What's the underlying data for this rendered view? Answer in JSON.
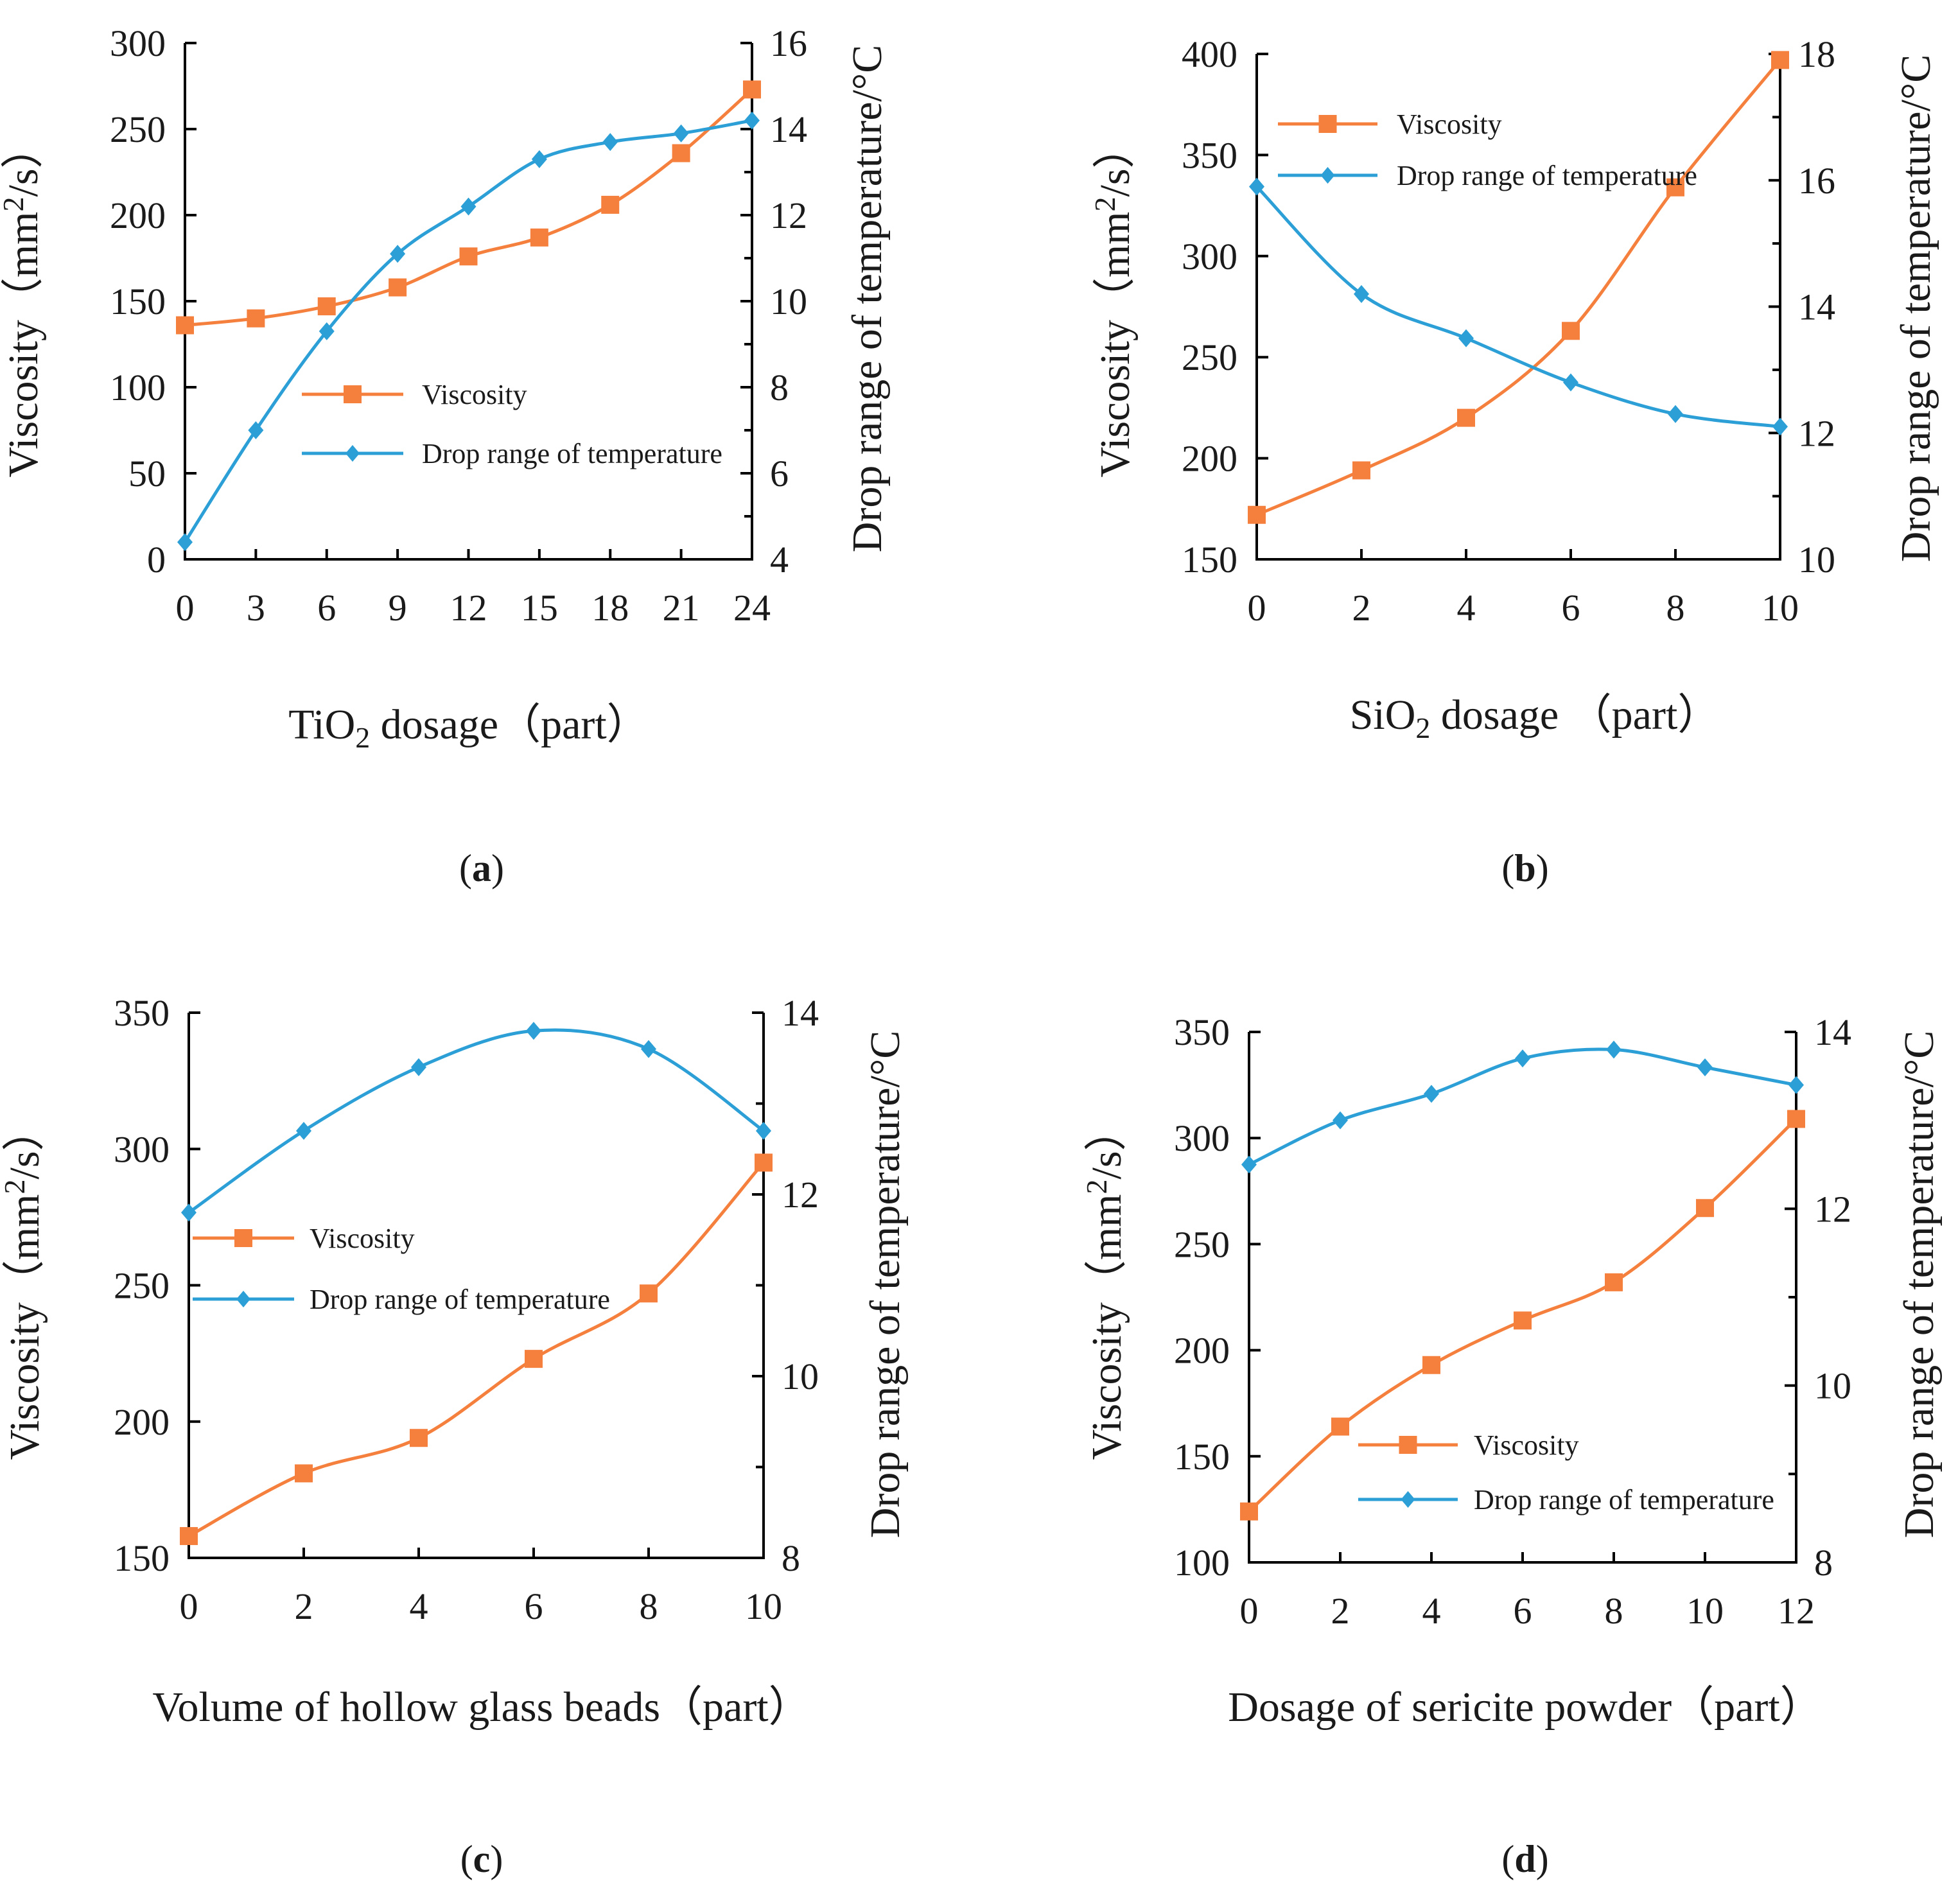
{
  "colors": {
    "viscosity": "#f5803e",
    "drop": "#2b9fd6",
    "axis": "#000000"
  },
  "chart_data": [
    {
      "type": "line",
      "caption_paren_open": "(",
      "caption_letter": "a",
      "caption_paren_close": ")",
      "xlabel_main": "TiO",
      "xlabel_sub": "2",
      "xlabel_rest": " dosage（part）",
      "ylabel_main": "Viscosity（mm",
      "ylabel_sup": "2",
      "ylabel_rest": "/s）",
      "y2label": "Drop range of temperature/°C",
      "x": [
        0,
        3,
        6,
        9,
        12,
        15,
        18,
        21,
        24
      ],
      "xticks": [
        "0",
        "3",
        "6",
        "9",
        "12",
        "15",
        "18",
        "21",
        "24"
      ],
      "xlim": [
        0,
        24
      ],
      "ylim": [
        0,
        300
      ],
      "yticks": [
        "0",
        "50",
        "100",
        "150",
        "200",
        "250",
        "300"
      ],
      "y2lim": [
        4,
        16
      ],
      "y2ticks": [
        "4",
        "6",
        "8",
        "10",
        "12",
        "14",
        "16"
      ],
      "legend_pos": "middle-right",
      "series": [
        {
          "name": "Viscosity",
          "axis": "left",
          "marker": "square",
          "values": [
            136,
            140,
            147,
            158,
            176,
            187,
            206,
            236,
            273
          ]
        },
        {
          "name": "Drop range of temperature",
          "axis": "right",
          "marker": "diamond",
          "values": [
            4.4,
            7.0,
            9.3,
            11.1,
            12.2,
            13.3,
            13.7,
            13.9,
            14.2
          ]
        }
      ]
    },
    {
      "type": "line",
      "caption_paren_open": "(",
      "caption_letter": "b",
      "caption_paren_close": ")",
      "xlabel_main": "SiO",
      "xlabel_sub": "2",
      "xlabel_rest": " dosage （part）",
      "ylabel_main": "Viscosity（mm",
      "ylabel_sup": "2",
      "ylabel_rest": "/s）",
      "y2label": "Drop range of temperature/°C",
      "x": [
        0,
        2,
        4,
        6,
        8,
        10
      ],
      "xticks": [
        "0",
        "2",
        "4",
        "6",
        "8",
        "10"
      ],
      "xlim": [
        0,
        10
      ],
      "ylim": [
        150,
        400
      ],
      "yticks": [
        "150",
        "200",
        "250",
        "300",
        "350",
        "400"
      ],
      "y2lim": [
        10,
        18
      ],
      "y2ticks": [
        "10",
        "12",
        "14",
        "16",
        "18"
      ],
      "legend_pos": "top-left",
      "series": [
        {
          "name": "Viscosity",
          "axis": "left",
          "marker": "square",
          "values": [
            172,
            194,
            220,
            263,
            334,
            397
          ]
        },
        {
          "name": "Drop range of temperature",
          "axis": "right",
          "marker": "diamond",
          "values": [
            15.9,
            14.2,
            13.5,
            12.8,
            12.3,
            12.1
          ]
        }
      ]
    },
    {
      "type": "line",
      "caption_paren_open": "(",
      "caption_letter": "c",
      "caption_paren_close": ")",
      "xlabel_main": "Volume of hollow glass beads（part）",
      "xlabel_sub": "",
      "xlabel_rest": "",
      "ylabel_main": "Viscosity（mm",
      "ylabel_sup": "2",
      "ylabel_rest": "/s）",
      "y2label": "Drop range of temperature/°C",
      "x": [
        0,
        2,
        4,
        6,
        8,
        10
      ],
      "xticks": [
        "0",
        "2",
        "4",
        "6",
        "8",
        "10"
      ],
      "xlim": [
        0,
        10
      ],
      "ylim": [
        150,
        350
      ],
      "yticks": [
        "150",
        "200",
        "250",
        "300",
        "350"
      ],
      "y2lim": [
        8,
        14
      ],
      "y2ticks": [
        "8",
        "10",
        "12",
        "14"
      ],
      "legend_pos": "middle-left",
      "series": [
        {
          "name": "Viscosity",
          "axis": "left",
          "marker": "square",
          "values": [
            158,
            181,
            194,
            223,
            247,
            295
          ]
        },
        {
          "name": "Drop range of temperature",
          "axis": "right",
          "marker": "diamond",
          "values": [
            11.8,
            12.7,
            13.4,
            13.8,
            13.6,
            12.7
          ]
        }
      ]
    },
    {
      "type": "line",
      "caption_paren_open": "(",
      "caption_letter": "d",
      "caption_paren_close": ")",
      "xlabel_main": "Dosage of sericite powder（part）",
      "xlabel_sub": "",
      "xlabel_rest": "",
      "ylabel_main": "Viscosity（mm",
      "ylabel_sup": "2",
      "ylabel_rest": "/s）",
      "y2label": "Drop range of temperature/°C",
      "x": [
        0,
        2,
        4,
        6,
        8,
        10,
        12
      ],
      "xticks": [
        "0",
        "2",
        "4",
        "6",
        "8",
        "10",
        "12"
      ],
      "xlim": [
        0,
        12
      ],
      "ylim": [
        100,
        350
      ],
      "yticks": [
        "100",
        "150",
        "200",
        "250",
        "300",
        "350"
      ],
      "y2lim": [
        8,
        14
      ],
      "y2ticks": [
        "8",
        "10",
        "12",
        "14"
      ],
      "legend_pos": "bottom-right",
      "series": [
        {
          "name": "Viscosity",
          "axis": "left",
          "marker": "square",
          "values": [
            124,
            164,
            193,
            214,
            232,
            267,
            309
          ]
        },
        {
          "name": "Drop range of temperature",
          "axis": "right",
          "marker": "diamond",
          "values": [
            12.5,
            13.0,
            13.3,
            13.7,
            13.8,
            13.6,
            13.4
          ]
        }
      ]
    }
  ]
}
